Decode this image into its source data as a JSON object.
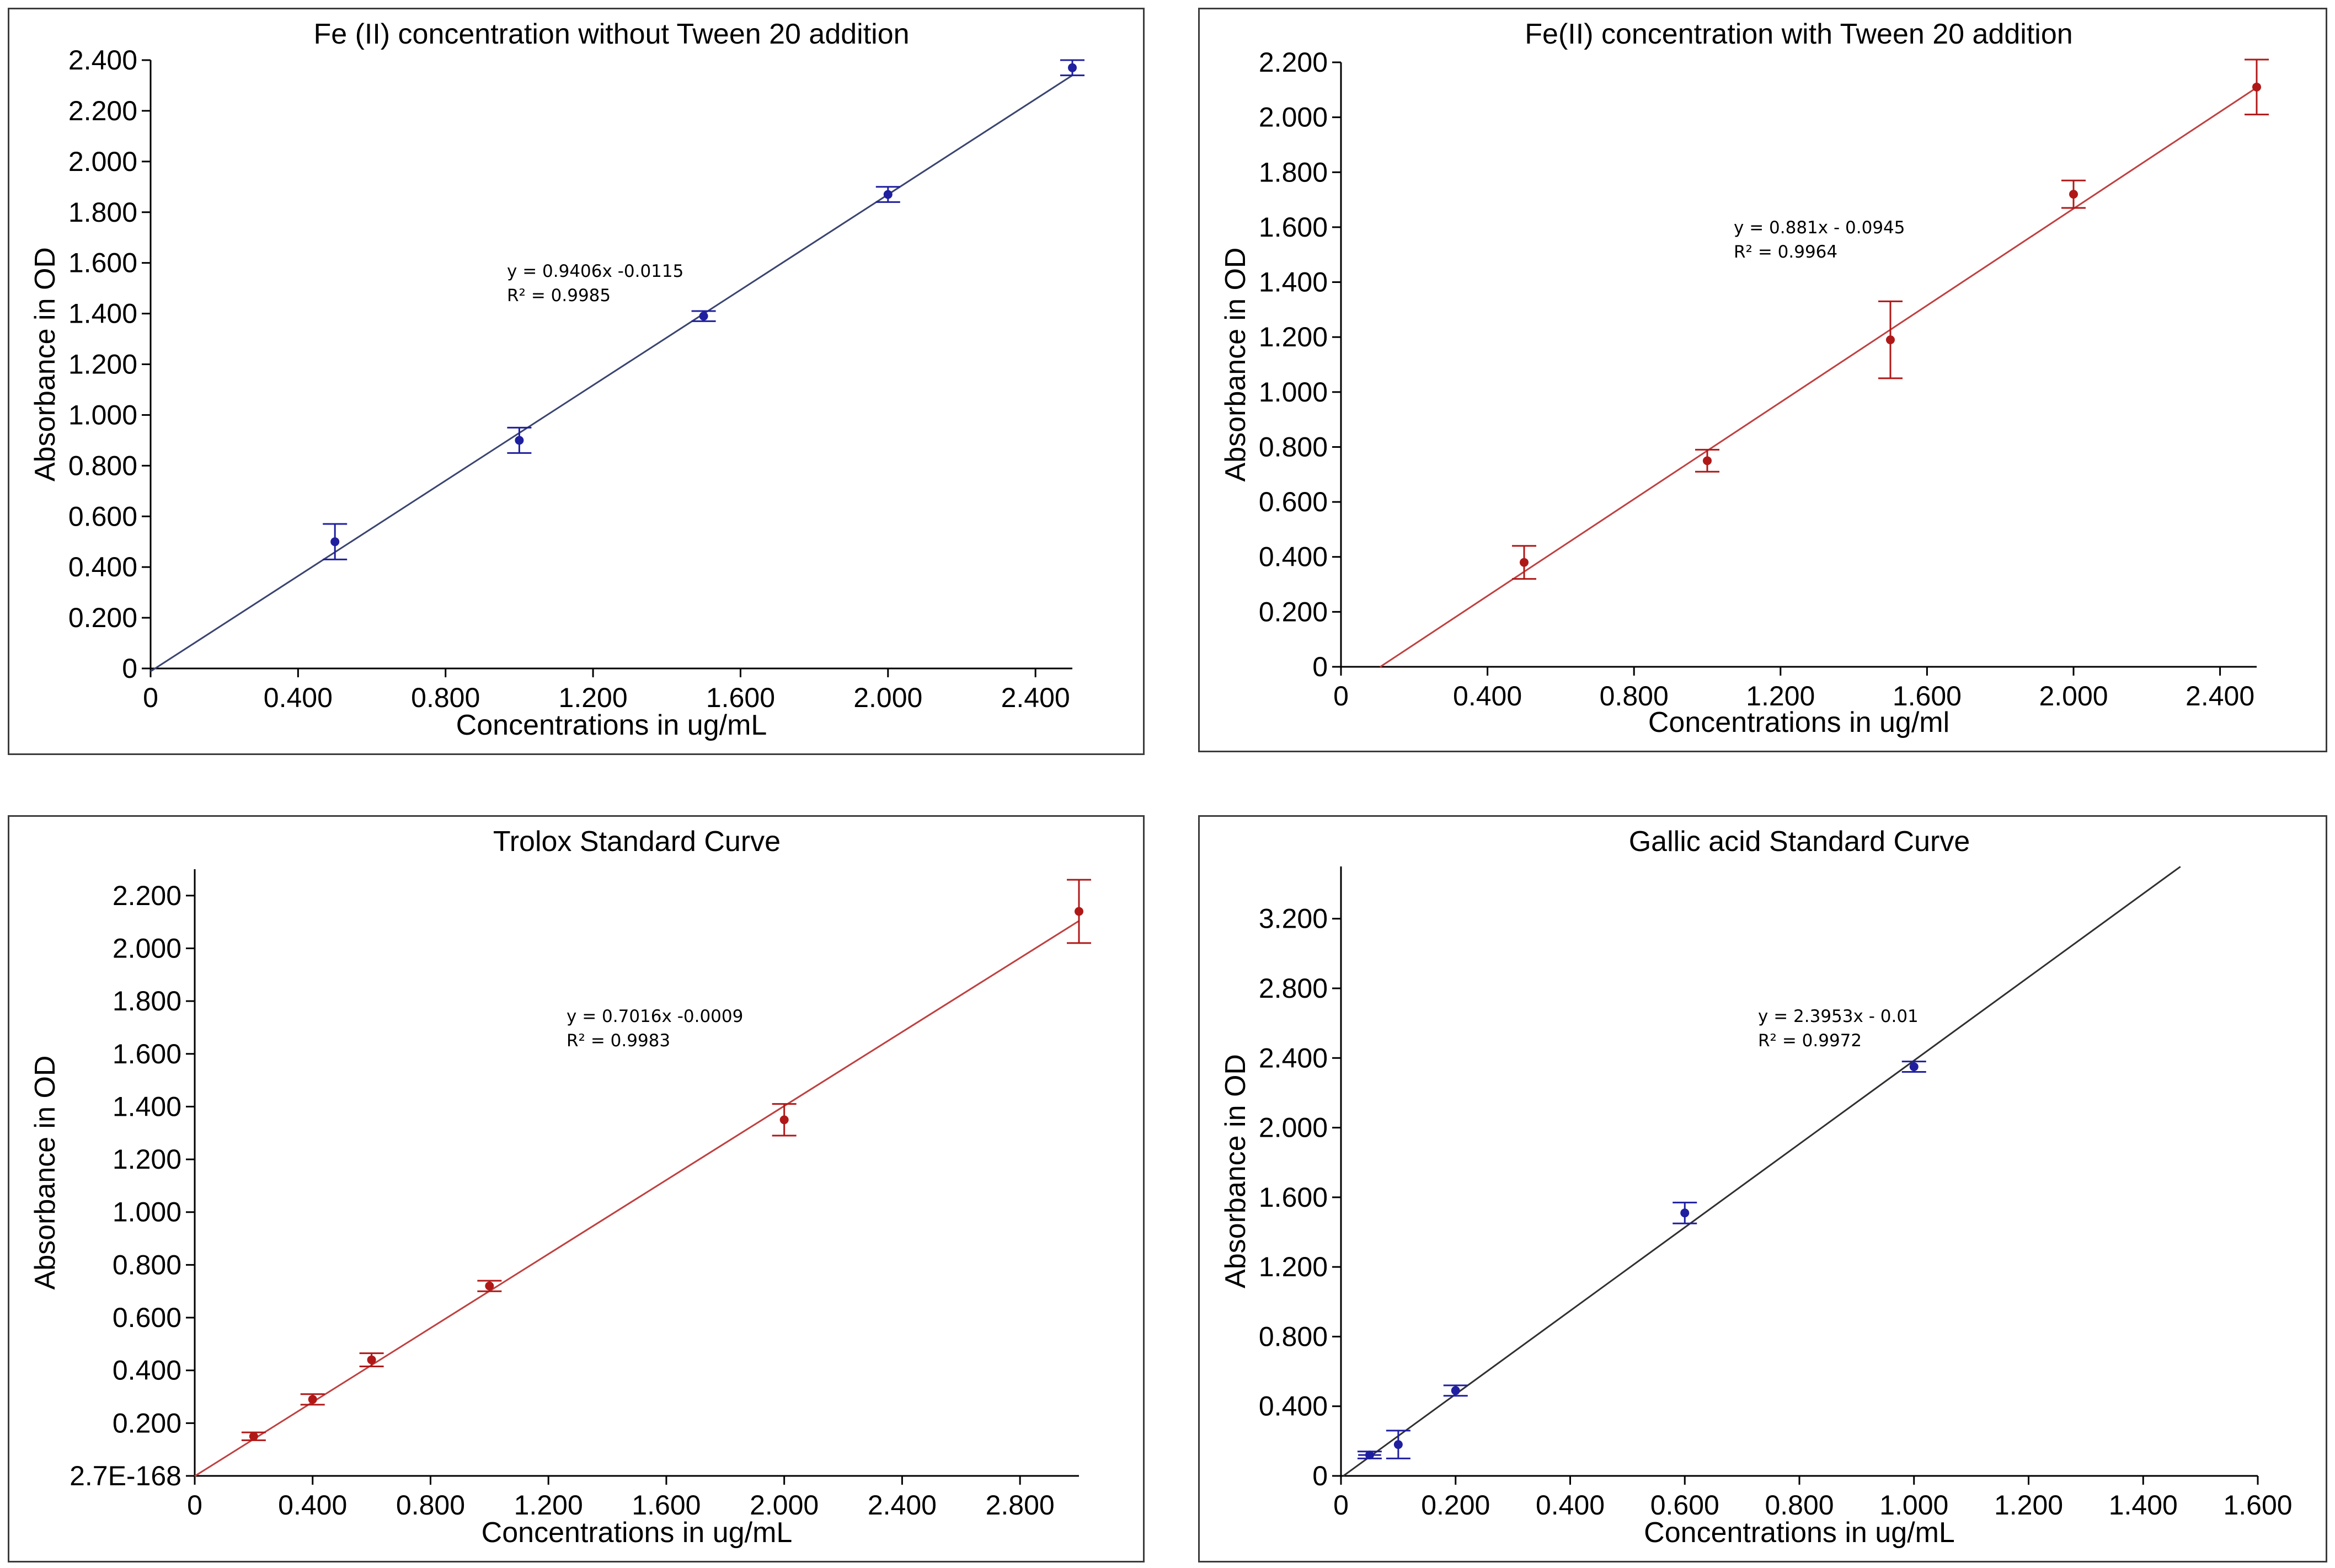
{
  "chart_data": [
    {
      "type": "scatter",
      "title": "Fe (II) concentration without Tween 20 addition",
      "xlabel": "Concentrations in ug/mL",
      "ylabel": "Absorbance in OD",
      "xlim": [
        0,
        2.5
      ],
      "ylim": [
        0,
        2.4
      ],
      "xticks": [
        0,
        0.4,
        0.8,
        1.2,
        1.6,
        2.0,
        2.4
      ],
      "xtick_labels": [
        "0",
        "0.400",
        "0.800",
        "1.200",
        "1.600",
        "2.000",
        "2.400"
      ],
      "yticks": [
        0,
        0.2,
        0.4,
        0.6,
        0.8,
        1.0,
        1.2,
        1.4,
        1.6,
        1.8,
        2.0,
        2.2,
        2.4
      ],
      "ytick_labels": [
        "0",
        "0.200",
        "0.400",
        "0.600",
        "0.800",
        "1.000",
        "1.200",
        "1.400",
        "1.600",
        "1.800",
        "2.000",
        "2.200",
        "2.400"
      ],
      "series": [
        {
          "name": "Fe(II)",
          "x": [
            0.5,
            1.0,
            1.5,
            2.0,
            2.5
          ],
          "y": [
            0.5,
            0.9,
            1.39,
            1.87,
            2.37
          ],
          "error": [
            0.07,
            0.05,
            0.02,
            0.03,
            0.03
          ]
        }
      ],
      "trendline": {
        "slope": 0.9406,
        "intercept": -0.0115,
        "x_range": [
          0,
          2.5
        ]
      },
      "equation": "y = 0.9406x -0.0115",
      "r2": "R² = 0.9985",
      "color": "#1f1fa0",
      "line_color": "#3a4470"
    },
    {
      "type": "scatter",
      "title": "Fe(II) concentration with Tween 20 addition",
      "xlabel": "Concentrations in ug/ml",
      "ylabel": "Absorbance in OD",
      "xlim": [
        0,
        2.5
      ],
      "ylim": [
        0,
        2.2
      ],
      "xticks": [
        0,
        0.4,
        0.8,
        1.2,
        1.6,
        2.0,
        2.4
      ],
      "xtick_labels": [
        "0",
        "0.400",
        "0.800",
        "1.200",
        "1.600",
        "2.000",
        "2.400"
      ],
      "yticks": [
        0,
        0.2,
        0.4,
        0.6,
        0.8,
        1.0,
        1.2,
        1.4,
        1.6,
        1.8,
        2.0,
        2.2
      ],
      "ytick_labels": [
        "0",
        "0.200",
        "0.400",
        "0.600",
        "0.800",
        "1.000",
        "1.200",
        "1.400",
        "1.600",
        "1.800",
        "2.000",
        "2.200"
      ],
      "series": [
        {
          "name": "Fe(II) + Tween 20",
          "x": [
            0.5,
            1.0,
            1.5,
            2.0,
            2.5
          ],
          "y": [
            0.38,
            0.75,
            1.19,
            1.72,
            2.11
          ],
          "error": [
            0.06,
            0.04,
            0.14,
            0.05,
            0.1
          ]
        }
      ],
      "trendline": {
        "slope": 0.881,
        "intercept": -0.0945,
        "x_range": [
          0.107,
          2.5
        ]
      },
      "equation": "y = 0.881x - 0.0945",
      "r2": "R² = 0.9964",
      "color": "#b01818",
      "line_color": "#c04040"
    },
    {
      "type": "scatter",
      "title": "Trolox Standard Curve",
      "xlabel": "Concentrations in ug/mL",
      "ylabel": "Absorbance in OD",
      "xlim": [
        0,
        3.0
      ],
      "ylim": [
        0,
        2.3
      ],
      "xticks": [
        0,
        0.4,
        0.8,
        1.2,
        1.6,
        2.0,
        2.4,
        2.8
      ],
      "xtick_labels": [
        "0",
        "0.400",
        "0.800",
        "1.200",
        "1.600",
        "2.000",
        "2.400",
        "2.800"
      ],
      "yticks": [
        0,
        0.2,
        0.4,
        0.6,
        0.8,
        1.0,
        1.2,
        1.4,
        1.6,
        1.8,
        2.0,
        2.2
      ],
      "ytick_labels": [
        "2.7E-168",
        "0.200",
        "0.400",
        "0.600",
        "0.800",
        "1.000",
        "1.200",
        "1.400",
        "1.600",
        "1.800",
        "2.000",
        "2.200"
      ],
      "series": [
        {
          "name": "Trolox",
          "x": [
            0.2,
            0.4,
            0.6,
            1.0,
            2.0,
            3.0
          ],
          "y": [
            0.15,
            0.29,
            0.44,
            0.72,
            1.35,
            2.14
          ],
          "error": [
            0.015,
            0.02,
            0.025,
            0.02,
            0.06,
            0.12
          ]
        }
      ],
      "trendline": {
        "slope": 0.7016,
        "intercept": -0.0009,
        "x_range": [
          0,
          3.0
        ]
      },
      "equation": "y = 0.7016x -0.0009",
      "r2": "R² = 0.9983",
      "color": "#b01818",
      "line_color": "#c04040"
    },
    {
      "type": "scatter",
      "title": "Gallic acid Standard Curve",
      "xlabel": "Concentrations in ug/mL",
      "ylabel": "Absorbance in OD",
      "xlim": [
        0,
        1.6
      ],
      "ylim": [
        0,
        3.5
      ],
      "xticks": [
        0,
        0.2,
        0.4,
        0.6,
        0.8,
        1.0,
        1.2,
        1.4,
        1.6
      ],
      "xtick_labels": [
        "0",
        "0.200",
        "0.400",
        "0.600",
        "0.800",
        "1.000",
        "1.200",
        "1.400",
        "1.600"
      ],
      "yticks": [
        0,
        0.4,
        0.8,
        1.2,
        1.6,
        2.0,
        2.4,
        2.8,
        3.2
      ],
      "ytick_labels": [
        "0",
        "0.400",
        "0.800",
        "1.200",
        "1.600",
        "2.000",
        "2.400",
        "2.800",
        "3.200"
      ],
      "series": [
        {
          "name": "Gallic acid",
          "x": [
            0.05,
            0.1,
            0.2,
            0.6,
            1.0
          ],
          "y": [
            0.12,
            0.18,
            0.49,
            1.51,
            2.35
          ],
          "error": [
            0.02,
            0.08,
            0.03,
            0.06,
            0.03
          ],
          "xerror": [
            0.02,
            0,
            0,
            0,
            0
          ]
        }
      ],
      "trendline": {
        "slope": 2.3953,
        "intercept": -0.01,
        "x_range": [
          0.004,
          1.465
        ]
      },
      "equation": "y = 2.3953x - 0.01",
      "r2": "R² = 0.9972",
      "color": "#1f1fa0",
      "line_color": "#303030"
    }
  ]
}
